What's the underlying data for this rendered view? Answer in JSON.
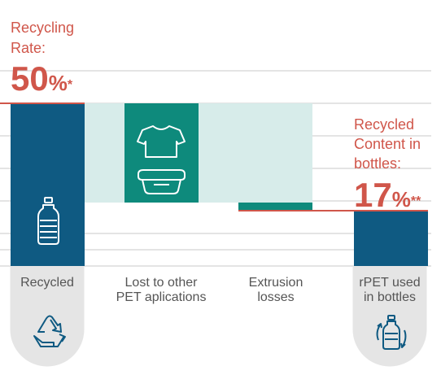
{
  "chart_data": {
    "type": "bar",
    "categories": [
      "Recycled",
      "Lost to other PET aplications",
      "Extrusion losses",
      "rPET used in bottles"
    ],
    "category_lines": [
      [
        "Recycled"
      ],
      [
        "Lost to other",
        "PET aplications"
      ],
      [
        "Extrusion",
        "losses"
      ],
      [
        "rPET used",
        "in bottles"
      ]
    ],
    "bars": [
      {
        "category": "Recycled",
        "bottom": 0,
        "top": 50,
        "color": "#0f5a82",
        "icon": "bottle-icon"
      },
      {
        "category": "Lost to other PET aplications",
        "bottom": 19.5,
        "top": 50,
        "color": "#0e8a7c",
        "icons": [
          "tshirt-icon",
          "food-tray-icon"
        ]
      },
      {
        "category": "Extrusion losses",
        "bottom": 17,
        "top": 19.5,
        "color": "#0e8a7c"
      },
      {
        "category": "rPET used in bottles",
        "bottom": 0,
        "top": 17,
        "color": "#0f5a82"
      }
    ],
    "background_band": {
      "bottom": 19.5,
      "top": 50,
      "color": "#d7ecea"
    },
    "ylim": [
      0,
      60
    ],
    "grid": true,
    "annotations": {
      "recycling_rate": {
        "lines": [
          "Recycling",
          "Rate:"
        ],
        "value": "50",
        "unit": "%",
        "mark": "*"
      },
      "recycled_content": {
        "lines": [
          "Recycled",
          "Content in",
          "bottles:"
        ],
        "value": "17",
        "unit": "%",
        "mark": "**"
      }
    },
    "footer_icons": [
      "recycle-icon",
      "bottle-cycle-icon"
    ]
  },
  "colors": {
    "accent": "#d0564a",
    "dark_blue": "#0f5a82",
    "teal": "#0e8a7c",
    "light_teal": "#d7ecea",
    "grid": "#c8c8c8",
    "tab_gray": "#e5e5e5",
    "label_gray": "#555555"
  }
}
